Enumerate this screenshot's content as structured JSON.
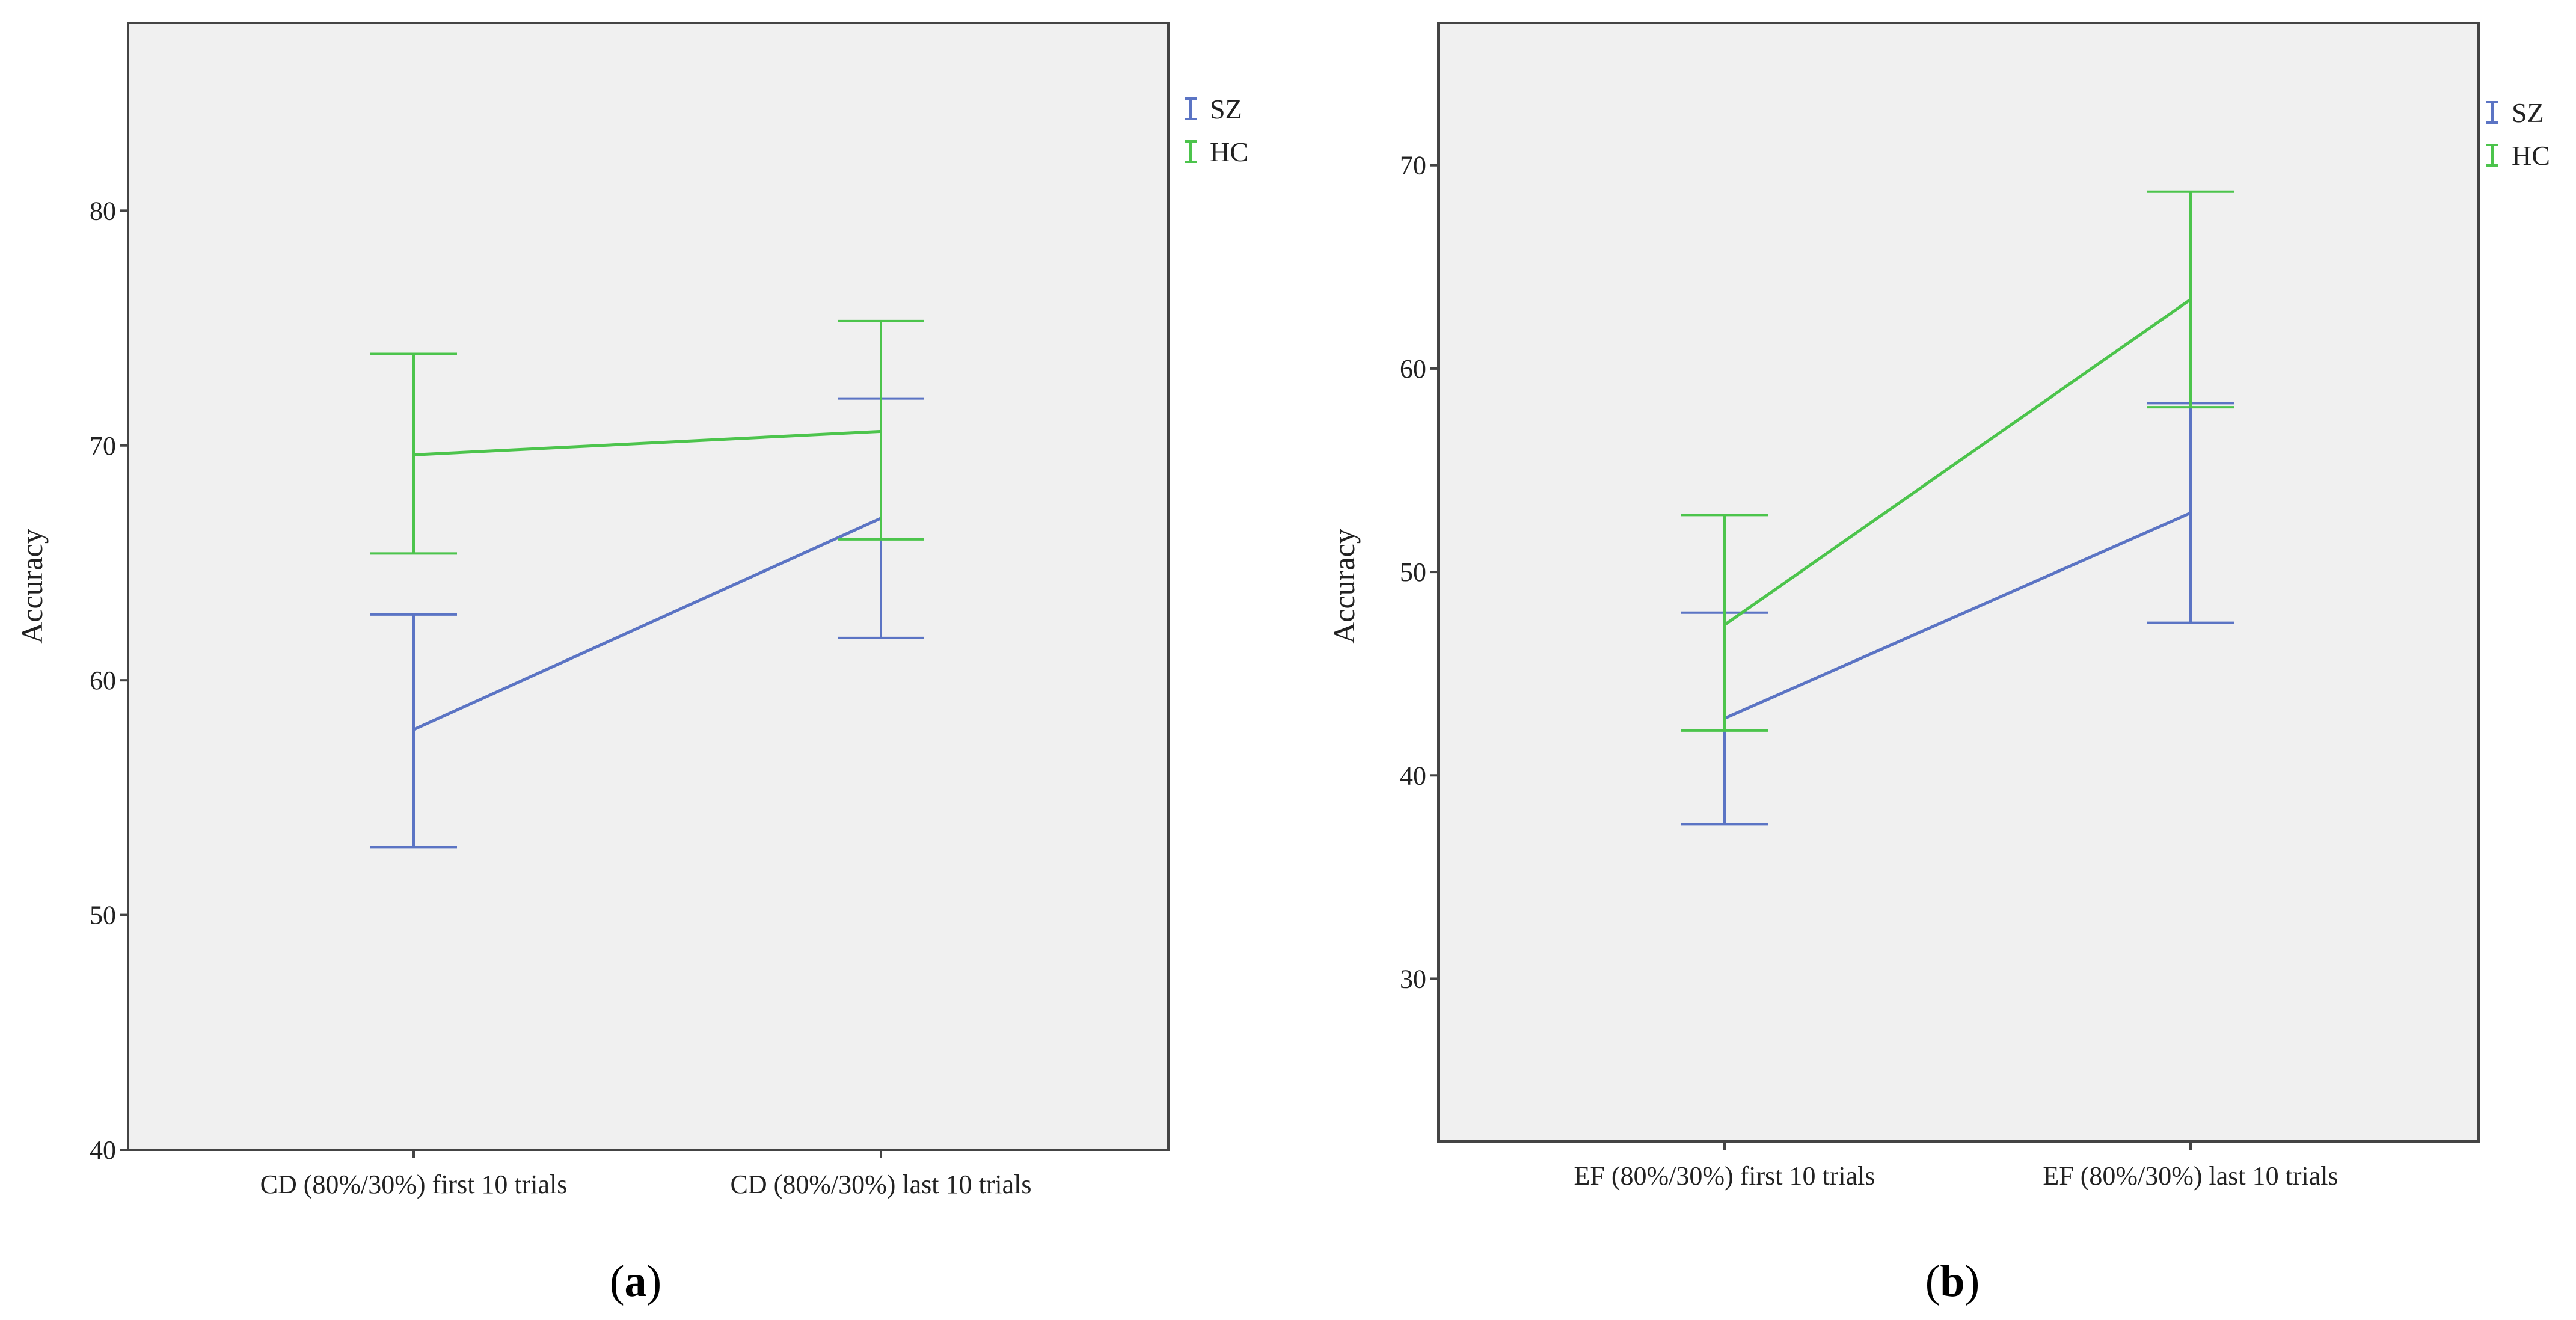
{
  "colors": {
    "SZ": "#5b74c4",
    "HC": "#4cc44c",
    "plot_bg": "#f0f0f0",
    "frame": "#444444"
  },
  "chart_data": [
    {
      "type": "line",
      "panel_label": "a",
      "title": "",
      "xlabel": "",
      "ylabel": "Accuracy",
      "ylim": [
        40,
        88
      ],
      "yticks": [
        "40",
        "50",
        "60",
        "70",
        "80"
      ],
      "categories": [
        "CD (80%/30%) first 10 trials",
        "CD (80%/30%) last 10 trials"
      ],
      "error_bars": true,
      "legend_position": "top-right",
      "series": [
        {
          "name": "SZ",
          "values": [
            57.9,
            66.9
          ],
          "lower": [
            52.9,
            61.8
          ],
          "upper": [
            62.8,
            72.0
          ]
        },
        {
          "name": "HC",
          "values": [
            69.6,
            70.6
          ],
          "lower": [
            65.4,
            66.0
          ],
          "upper": [
            73.9,
            75.3
          ]
        }
      ]
    },
    {
      "type": "line",
      "panel_label": "b",
      "title": "",
      "xlabel": "",
      "ylabel": "Accuracy",
      "ylim": [
        22,
        77
      ],
      "yticks": [
        "30",
        "40",
        "50",
        "60",
        "70"
      ],
      "categories": [
        "EF (80%/30%) first 10 trials",
        "EF (80%/30%) last 10 trials"
      ],
      "error_bars": true,
      "legend_position": "top-right",
      "series": [
        {
          "name": "SZ",
          "values": [
            42.8,
            52.9
          ],
          "lower": [
            37.6,
            47.5
          ],
          "upper": [
            48.0,
            58.3
          ]
        },
        {
          "name": "HC",
          "values": [
            47.4,
            63.4
          ],
          "lower": [
            42.2,
            58.1
          ],
          "upper": [
            52.8,
            68.7
          ]
        }
      ]
    }
  ]
}
